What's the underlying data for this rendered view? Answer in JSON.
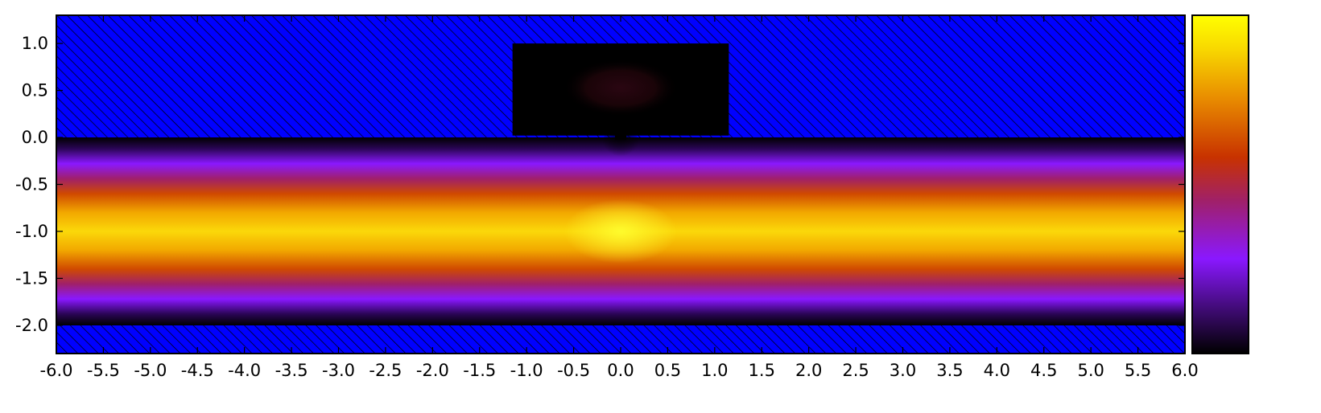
{
  "chart_data": {
    "type": "heatmap",
    "title": "",
    "xlabel": "",
    "ylabel": "",
    "xlim": [
      -6.0,
      6.0
    ],
    "ylim": [
      -2.3,
      1.3
    ],
    "x_ticks": [
      "-6.0",
      "-5.5",
      "-5.0",
      "-4.5",
      "-4.0",
      "-3.5",
      "-3.0",
      "-2.5",
      "-2.0",
      "-1.5",
      "-1.0",
      "-0.5",
      "0.0",
      "0.5",
      "1.0",
      "1.5",
      "2.0",
      "2.5",
      "3.0",
      "3.5",
      "4.0",
      "4.5",
      "5.0",
      "5.5",
      "6.0"
    ],
    "y_ticks": [
      "1.0",
      "0.5",
      "0.0",
      "-0.5",
      "-1.0",
      "-1.5",
      "-2.0"
    ],
    "grid": false,
    "colormap": "gnuplot-style black-purple-red-yellow",
    "colorbar": {
      "ticks": []
    },
    "hatched_regions": [
      {
        "x": [
          -6.0,
          6.0
        ],
        "y": [
          0.0,
          1.3
        ],
        "color": "#0000ff"
      },
      {
        "x": [
          -6.0,
          6.0
        ],
        "y": [
          -2.3,
          -2.0
        ],
        "color": "#0000ff"
      }
    ],
    "cavity": {
      "x": [
        -1.15,
        1.15
      ],
      "y": [
        0.02,
        1.0
      ]
    },
    "waveguide": {
      "x": [
        -6.0,
        6.0
      ],
      "y": [
        -2.0,
        0.0
      ],
      "peak_y": -1.0
    },
    "colors": {
      "hatch_fill": "#0000ff",
      "hatch_line": "#000000",
      "cavity": "#000000"
    }
  }
}
